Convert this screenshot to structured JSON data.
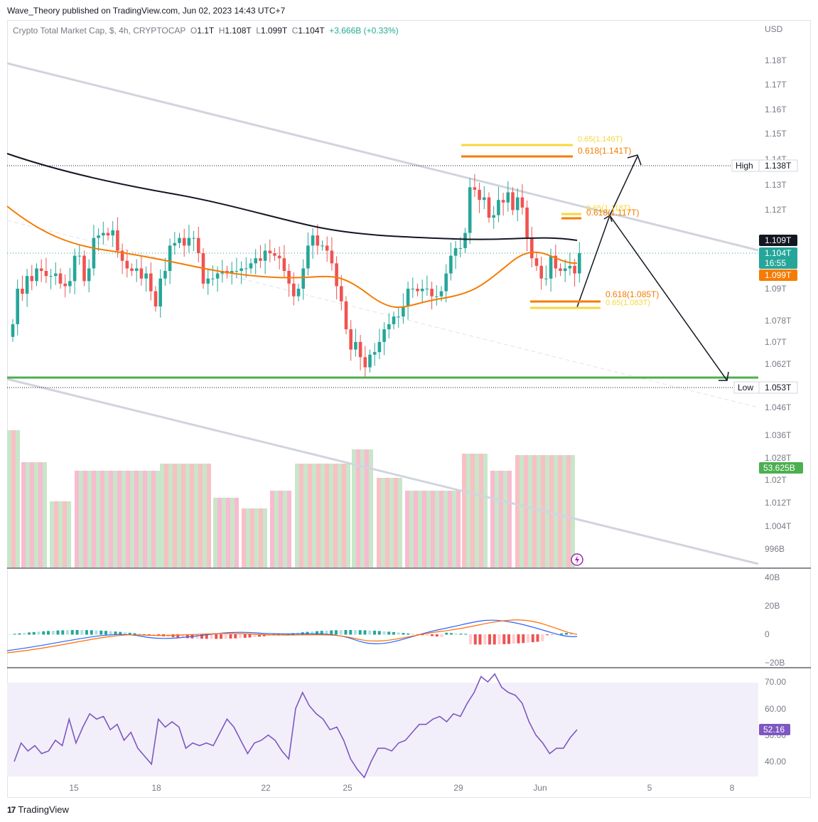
{
  "header": {
    "publisher": "Wave_Theory published on TradingView.com, Jun 02, 2023 14:43 UTC+7",
    "symbol": "Crypto Total Market Cap, $, 4h, CRYPTOCAP",
    "o_label": "O",
    "o_val": "1.1T",
    "h_label": "H",
    "h_val": "1.108T",
    "l_label": "L",
    "l_val": "1.099T",
    "c_label": "C",
    "c_val": "1.104T",
    "change": "+3.666B (+0.33%)"
  },
  "footer": {
    "brand": "TradingView",
    "logo": "17"
  },
  "colors": {
    "bull": "#26a69a",
    "bear": "#ef5350",
    "ema": "#f57c00",
    "ma": "#131722",
    "channel": "#d1d4dc",
    "support": "#4caf50",
    "macd": "#2962ff",
    "signal": "#ff6d00",
    "rsi": "#7e57c2",
    "fib65": "#f7d73b",
    "fib618": "#f57c00"
  },
  "price_axis": {
    "currency": "USD",
    "ticks": [
      "1.18T",
      "1.17T",
      "1.16T",
      "1.15T",
      "1.14T",
      "1.13T",
      "1.12T",
      "1.09T",
      "1.078T",
      "1.07T",
      "1.062T",
      "1.046T",
      "1.036T",
      "1.028T",
      "1.02T",
      "1.012T",
      "1.004T",
      "996B"
    ],
    "high_label": "High",
    "high_value": "1.138T",
    "low_label": "Low",
    "low_value": "1.053T",
    "ma_value": "1.109T",
    "price_value": "1.104T",
    "countdown": "16:55",
    "ema_value": "1.099T",
    "volume_value": "53.625B"
  },
  "macd_axis": {
    "ticks": [
      "40B",
      "20B",
      "0",
      "−20B"
    ]
  },
  "rsi_axis": {
    "ticks": [
      "70.00",
      "60.00",
      "50.00",
      "40.00"
    ],
    "value": "52.16"
  },
  "time_axis": {
    "ticks": [
      "15",
      "18",
      "22",
      "25",
      "29",
      "Jun",
      "5",
      "8"
    ]
  },
  "fib_labels": {
    "top65": "0.65(1.146T)",
    "top618": "0.618(1.141T)",
    "mid65": "0.65(1.118T)",
    "mid618": "0.618(1.117T)",
    "low618": "0.618(1.085T)",
    "low65": "0.65(1.083T)"
  },
  "chart_data": {
    "type": "candlestick",
    "symbol": "Crypto Total Market Cap",
    "timeframe": "4h",
    "currency": "USD",
    "price_range": [
      0.99,
      1.185
    ],
    "overlays": [
      "EMA",
      "MA",
      "descending channel",
      "horizontal support",
      "Fibonacci levels",
      "projected path"
    ],
    "support": 1.057,
    "fib_levels": [
      1.146,
      1.141,
      1.118,
      1.117,
      1.085,
      1.083
    ],
    "high": 1.138,
    "low": 1.053,
    "close_series": [
      1.076,
      1.09,
      1.088,
      1.095,
      1.093,
      1.098,
      1.097,
      1.095,
      1.095,
      1.096,
      1.092,
      1.091,
      1.093,
      1.103,
      1.103,
      1.093,
      1.098,
      1.11,
      1.111,
      1.112,
      1.111,
      1.113,
      1.105,
      1.101,
      1.098,
      1.097,
      1.098,
      1.094,
      1.096,
      1.089,
      1.083,
      1.094,
      1.097,
      1.107,
      1.108,
      1.11,
      1.107,
      1.11,
      1.11,
      1.104,
      1.092,
      1.094,
      1.094,
      1.096,
      1.097,
      1.096,
      1.097,
      1.097,
      1.098,
      1.098,
      1.1,
      1.102,
      1.101,
      1.105,
      1.104,
      1.103,
      1.102,
      1.097,
      1.092,
      1.087,
      1.09,
      1.098,
      1.107,
      1.111,
      1.107,
      1.107,
      1.105,
      1.1,
      1.091,
      1.085,
      1.074,
      1.066,
      1.069,
      1.063,
      1.059,
      1.064,
      1.065,
      1.069,
      1.074,
      1.076,
      1.079,
      1.079,
      1.083,
      1.09,
      1.09,
      1.089,
      1.09,
      1.09,
      1.087,
      1.087,
      1.089,
      1.096,
      1.103,
      1.106,
      1.106,
      1.112,
      1.13,
      1.129,
      1.125,
      1.126,
      1.118,
      1.119,
      1.125,
      1.124,
      1.128,
      1.121,
      1.126,
      1.122,
      1.11,
      1.102,
      1.099,
      1.094,
      1.094,
      1.103,
      1.098,
      1.097,
      1.098,
      1.099,
      1.096,
      1.104
    ],
    "volume_value": 53.625,
    "macd_range": [
      -25,
      45
    ],
    "rsi_range": [
      30,
      75
    ],
    "rsi_last": 52.16
  }
}
